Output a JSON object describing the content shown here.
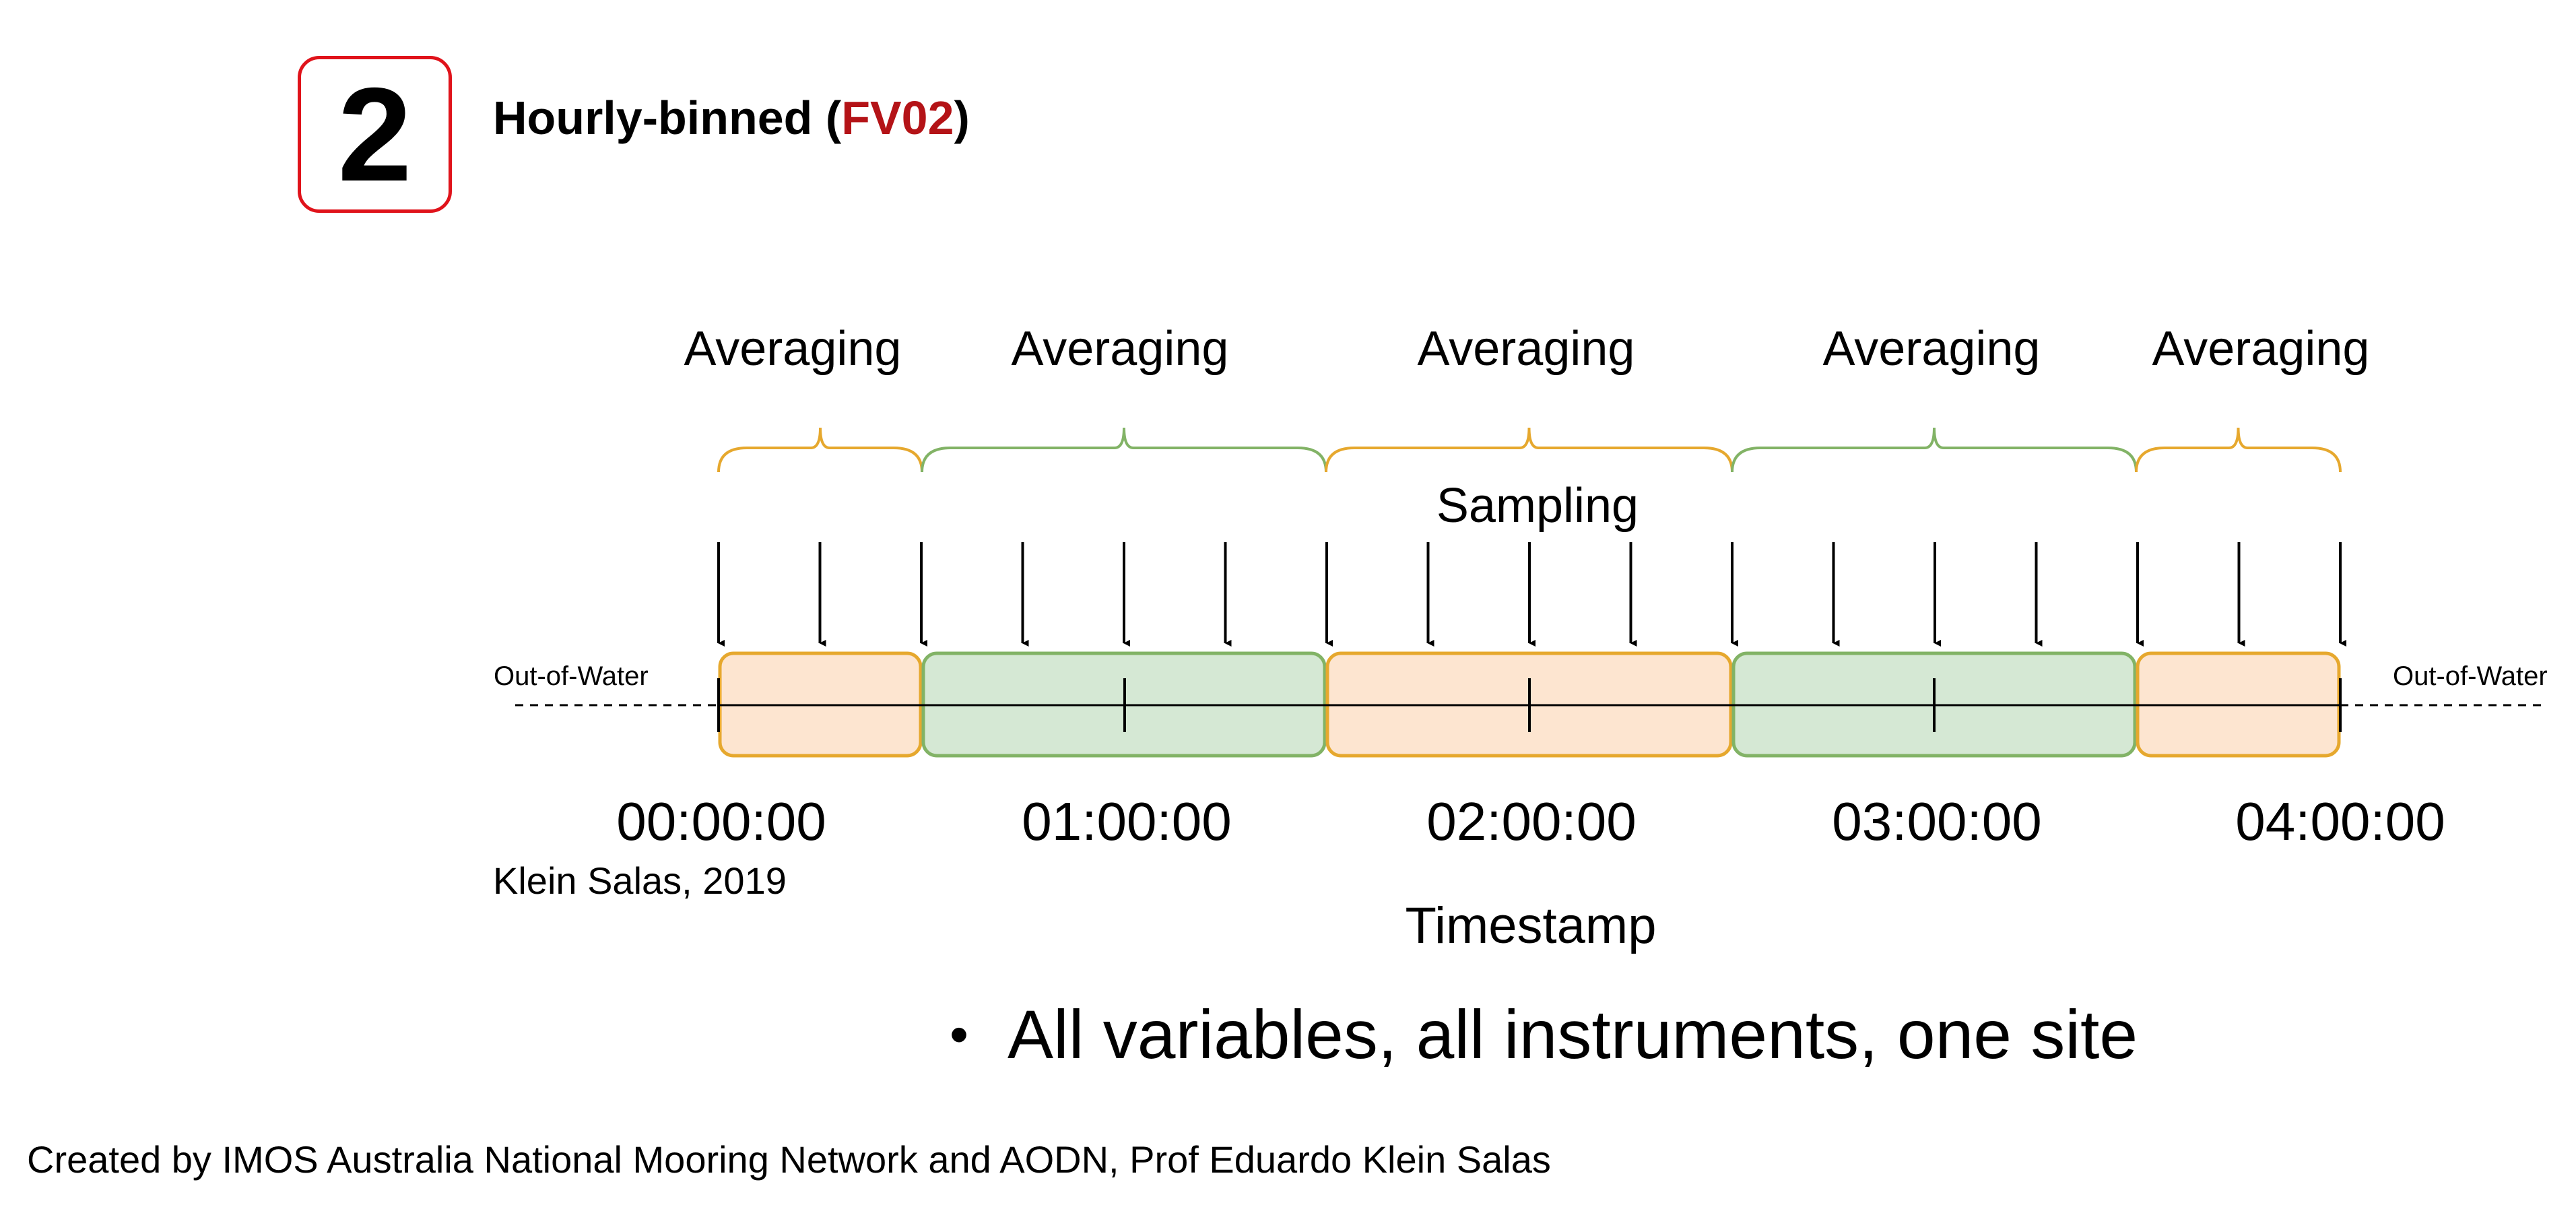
{
  "slide": {
    "step_number": "2",
    "title_prefix": "Hourly-binned (",
    "title_accent": "FV02",
    "title_suffix": ")",
    "citation": "Klein Salas, 2019",
    "bullet": "All variables, all instruments, one site",
    "footer": "Created by IMOS Australia National Mooring Network and AODN, Prof Eduardo Klein Salas"
  },
  "colors": {
    "step_border": "#e0131b",
    "title_accent": "#b41317",
    "orange_fill": "#fde5d0",
    "orange_stroke": "#e6a82e",
    "green_fill": "#d5e8d4",
    "green_stroke": "#82b366"
  },
  "diagram": {
    "averaging_labels": [
      "Averaging",
      "Averaging",
      "Averaging",
      "Averaging",
      "Averaging"
    ],
    "sampling_label": "Sampling",
    "out_of_water_left": "Out-of-Water",
    "out_of_water_right": "Out-of-Water",
    "timestamps": [
      "00:00:00",
      "01:00:00",
      "02:00:00",
      "03:00:00",
      "04:00:00"
    ],
    "timestamp_axis_label": "Timestamp",
    "bins": [
      {
        "color": "orange"
      },
      {
        "color": "green"
      },
      {
        "color": "orange"
      },
      {
        "color": "green"
      },
      {
        "color": "orange"
      }
    ],
    "sample_count": 17
  }
}
